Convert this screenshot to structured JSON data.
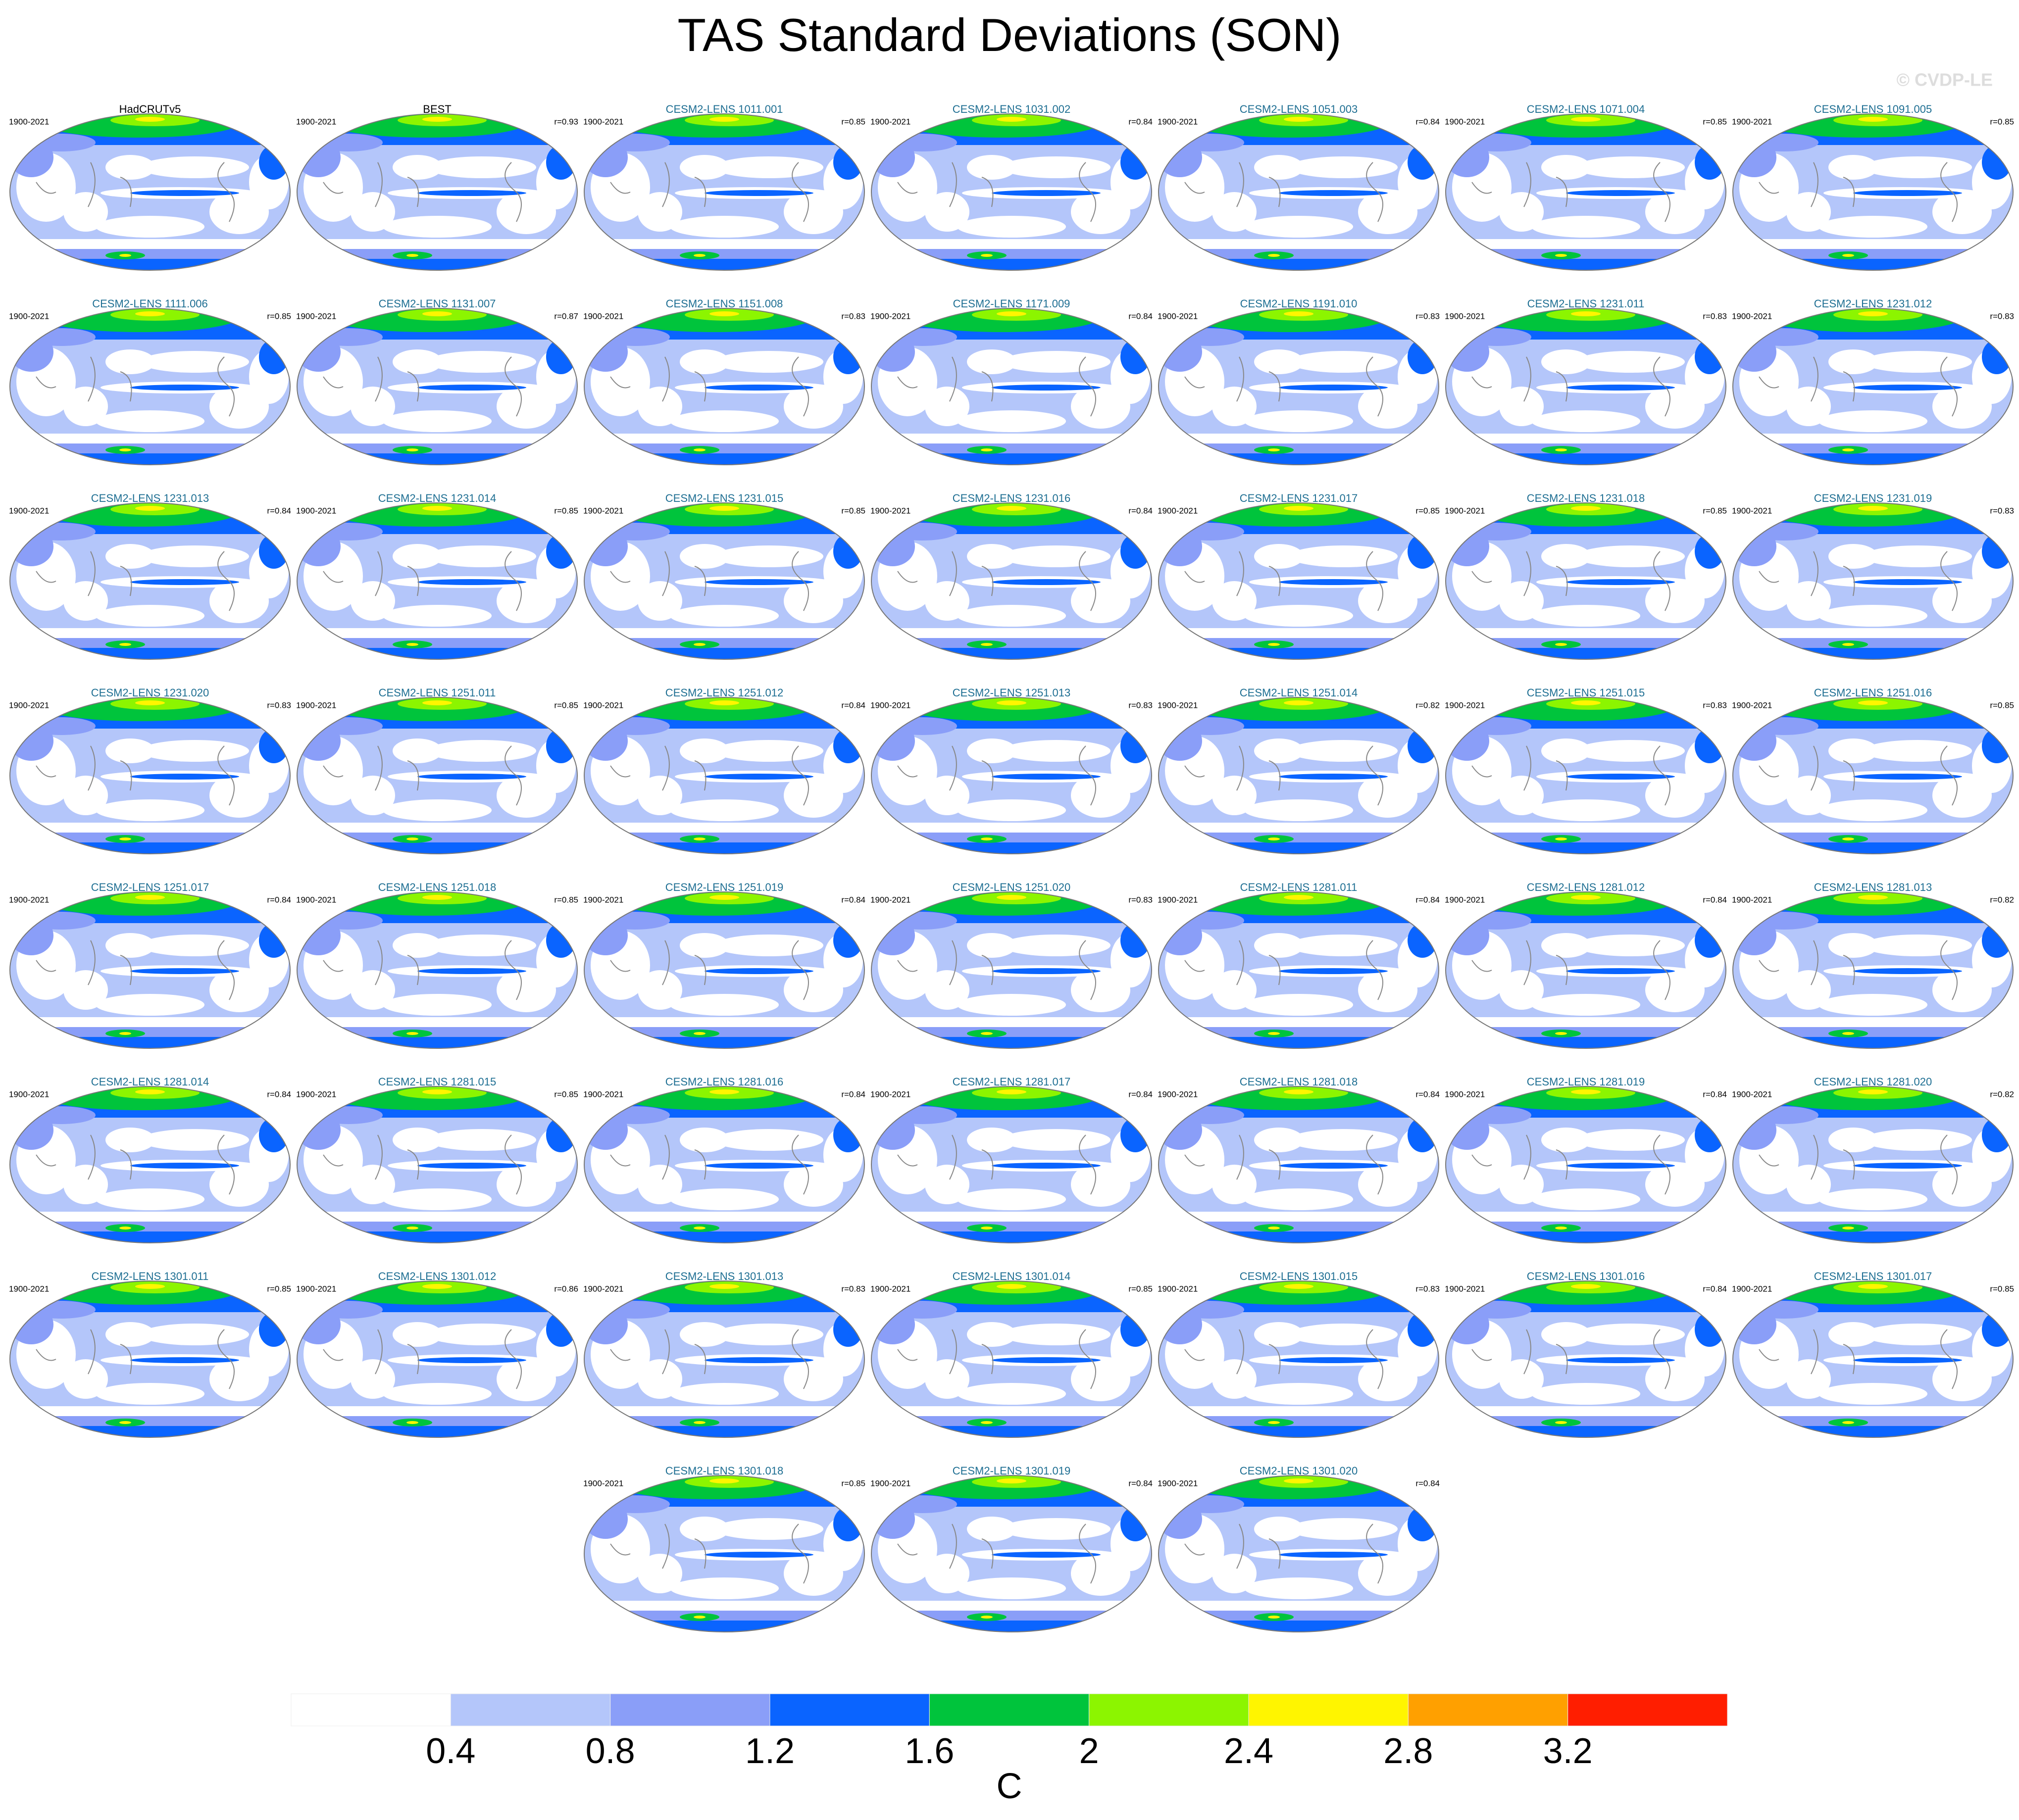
{
  "title": "TAS Standard Deviations (SON)",
  "watermark": "© CVDP-LE",
  "period": "1900-2021",
  "observations": [
    {
      "name": "HadCRUTv5"
    },
    {
      "name": "BEST",
      "r": "r=0.93"
    }
  ],
  "models": [
    {
      "name": "CESM2-LENS 1011.001",
      "r": "r=0.85"
    },
    {
      "name": "CESM2-LENS 1031.002",
      "r": "r=0.84"
    },
    {
      "name": "CESM2-LENS 1051.003",
      "r": "r=0.84"
    },
    {
      "name": "CESM2-LENS 1071.004",
      "r": "r=0.85"
    },
    {
      "name": "CESM2-LENS 1091.005",
      "r": "r=0.85"
    },
    {
      "name": "CESM2-LENS 1111.006",
      "r": "r=0.85"
    },
    {
      "name": "CESM2-LENS 1131.007",
      "r": "r=0.87"
    },
    {
      "name": "CESM2-LENS 1151.008",
      "r": "r=0.83"
    },
    {
      "name": "CESM2-LENS 1171.009",
      "r": "r=0.84"
    },
    {
      "name": "CESM2-LENS 1191.010",
      "r": "r=0.83"
    },
    {
      "name": "CESM2-LENS 1231.011",
      "r": "r=0.83"
    },
    {
      "name": "CESM2-LENS 1231.012",
      "r": "r=0.83"
    },
    {
      "name": "CESM2-LENS 1231.013",
      "r": "r=0.84"
    },
    {
      "name": "CESM2-LENS 1231.014",
      "r": "r=0.85"
    },
    {
      "name": "CESM2-LENS 1231.015",
      "r": "r=0.85"
    },
    {
      "name": "CESM2-LENS 1231.016",
      "r": "r=0.84"
    },
    {
      "name": "CESM2-LENS 1231.017",
      "r": "r=0.85"
    },
    {
      "name": "CESM2-LENS 1231.018",
      "r": "r=0.85"
    },
    {
      "name": "CESM2-LENS 1231.019",
      "r": "r=0.83"
    },
    {
      "name": "CESM2-LENS 1231.020",
      "r": "r=0.83"
    },
    {
      "name": "CESM2-LENS 1251.011",
      "r": "r=0.85"
    },
    {
      "name": "CESM2-LENS 1251.012",
      "r": "r=0.84"
    },
    {
      "name": "CESM2-LENS 1251.013",
      "r": "r=0.83"
    },
    {
      "name": "CESM2-LENS 1251.014",
      "r": "r=0.82"
    },
    {
      "name": "CESM2-LENS 1251.015",
      "r": "r=0.83"
    },
    {
      "name": "CESM2-LENS 1251.016",
      "r": "r=0.85"
    },
    {
      "name": "CESM2-LENS 1251.017",
      "r": "r=0.84"
    },
    {
      "name": "CESM2-LENS 1251.018",
      "r": "r=0.85"
    },
    {
      "name": "CESM2-LENS 1251.019",
      "r": "r=0.84"
    },
    {
      "name": "CESM2-LENS 1251.020",
      "r": "r=0.83"
    },
    {
      "name": "CESM2-LENS 1281.011",
      "r": "r=0.84"
    },
    {
      "name": "CESM2-LENS 1281.012",
      "r": "r=0.84"
    },
    {
      "name": "CESM2-LENS 1281.013",
      "r": "r=0.82"
    },
    {
      "name": "CESM2-LENS 1281.014",
      "r": "r=0.84"
    },
    {
      "name": "CESM2-LENS 1281.015",
      "r": "r=0.85"
    },
    {
      "name": "CESM2-LENS 1281.016",
      "r": "r=0.84"
    },
    {
      "name": "CESM2-LENS 1281.017",
      "r": "r=0.84"
    },
    {
      "name": "CESM2-LENS 1281.018",
      "r": "r=0.84"
    },
    {
      "name": "CESM2-LENS 1281.019",
      "r": "r=0.84"
    },
    {
      "name": "CESM2-LENS 1281.020",
      "r": "r=0.82"
    },
    {
      "name": "CESM2-LENS 1301.011",
      "r": "r=0.85"
    },
    {
      "name": "CESM2-LENS 1301.012",
      "r": "r=0.86"
    },
    {
      "name": "CESM2-LENS 1301.013",
      "r": "r=0.83"
    },
    {
      "name": "CESM2-LENS 1301.014",
      "r": "r=0.85"
    },
    {
      "name": "CESM2-LENS 1301.015",
      "r": "r=0.83"
    },
    {
      "name": "CESM2-LENS 1301.016",
      "r": "r=0.84"
    },
    {
      "name": "CESM2-LENS 1301.017",
      "r": "r=0.85"
    },
    {
      "name": "CESM2-LENS 1301.018",
      "r": "r=0.85"
    },
    {
      "name": "CESM2-LENS 1301.019",
      "r": "r=0.84"
    },
    {
      "name": "CESM2-LENS 1301.020",
      "r": "r=0.84"
    }
  ],
  "colorbar": {
    "colors": [
      "#ffffff",
      "#b4c6fa",
      "#8a9ef8",
      "#0a64ff",
      "#00c43c",
      "#8cf500",
      "#fff500",
      "#ffa000",
      "#ff1e00"
    ],
    "ticks": [
      0.4,
      0.8,
      1.2,
      1.6,
      2,
      2.4,
      2.8,
      3.2
    ],
    "unit": "C"
  }
}
